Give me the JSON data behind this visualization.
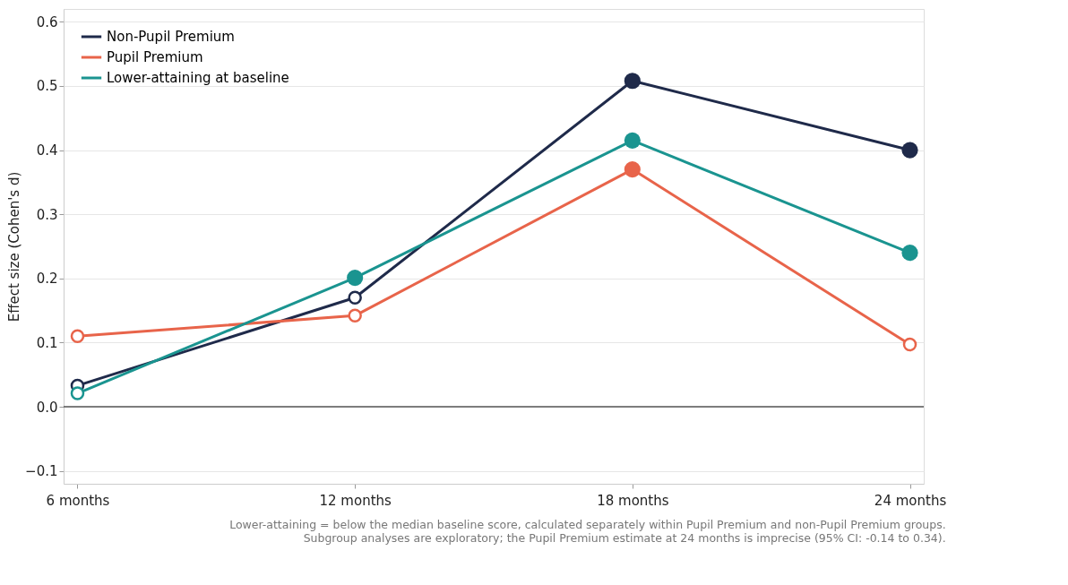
{
  "chart_data": {
    "type": "line",
    "ylabel": "Effect size (Cohen's d)",
    "categories": [
      "6 months",
      "12 months",
      "18 months",
      "24 months"
    ],
    "series": [
      {
        "name": "Non-Pupil Premium",
        "color": "#1f2a4a",
        "values": [
          0.033,
          0.17,
          0.508,
          0.4
        ]
      },
      {
        "name": "Pupil Premium",
        "color": "#e8644a",
        "values": [
          0.11,
          0.142,
          0.37,
          0.097
        ]
      },
      {
        "name": "Lower-attaining at baseline",
        "color": "#1a9490",
        "values": [
          0.021,
          0.201,
          0.415,
          0.24
        ]
      },
      {
        "type": "scatter",
        "color": "#1f2a4a",
        "values": [
          null,
          null,
          0.508,
          0.4
        ]
      },
      {
        "type": "scatter",
        "color": "#e8644a",
        "values": [
          null,
          null,
          0.37,
          null
        ]
      },
      {
        "type": "scatter",
        "color": "#1a9490",
        "values": [
          null,
          0.201,
          0.415,
          0.24
        ]
      }
    ],
    "ylim": [
      -0.12,
      0.62
    ],
    "yticks": [
      {
        "value": -0.1,
        "label": "−0.1"
      },
      {
        "value": 0,
        "label": "0.0"
      },
      0.1,
      0.2,
      0.3,
      0.4,
      0.5,
      0.6
    ],
    "ref_lines": [
      {
        "axis": "y",
        "value": 0,
        "color": "#555555"
      }
    ],
    "grid": "y",
    "legend": "top left",
    "marker": "circle",
    "annotations": [
      "Lower-attaining = below the median baseline score, calculated separately within Pupil Premium and non-Pupil Premium groups.",
      "Subgroup analyses are exploratory; the Pupil Premium estimate at 24 months is imprecise (95% CI: -0.14 to 0.34)."
    ]
  }
}
